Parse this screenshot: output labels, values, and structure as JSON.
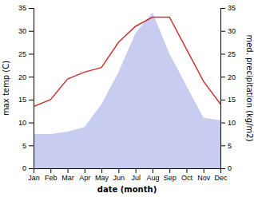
{
  "chart_data": {
    "type": "line",
    "categories": [
      "Jan",
      "Feb",
      "Mar",
      "Apr",
      "May",
      "Jun",
      "Jul",
      "Aug",
      "Sep",
      "Oct",
      "Nov",
      "Dec"
    ],
    "series": [
      {
        "type": "area",
        "color": "#c8ccf0",
        "axis": "y2",
        "values": [
          7.5,
          7.5,
          8.0,
          9.0,
          14.0,
          21.0,
          29.5,
          34.0,
          25.0,
          18.0,
          11.0,
          10.5
        ]
      },
      {
        "type": "line",
        "color": "#cc3333",
        "values": [
          13.5,
          15.0,
          19.5,
          21.0,
          22.0,
          27.5,
          31.0,
          33.0,
          33.0,
          26.0,
          19.0,
          14.0
        ]
      }
    ],
    "xlabel": "date (month)",
    "ylabel": "max temp (C)",
    "y2label": "med. precipitation (kg/m2)",
    "ylim": [
      0,
      35
    ],
    "yticks": [
      0,
      5,
      10,
      15,
      20,
      25,
      30,
      35
    ],
    "y2lim": [
      0,
      35
    ],
    "y2ticks": [
      0,
      5,
      10,
      15,
      20,
      25,
      30,
      35
    ],
    "grid": false
  }
}
